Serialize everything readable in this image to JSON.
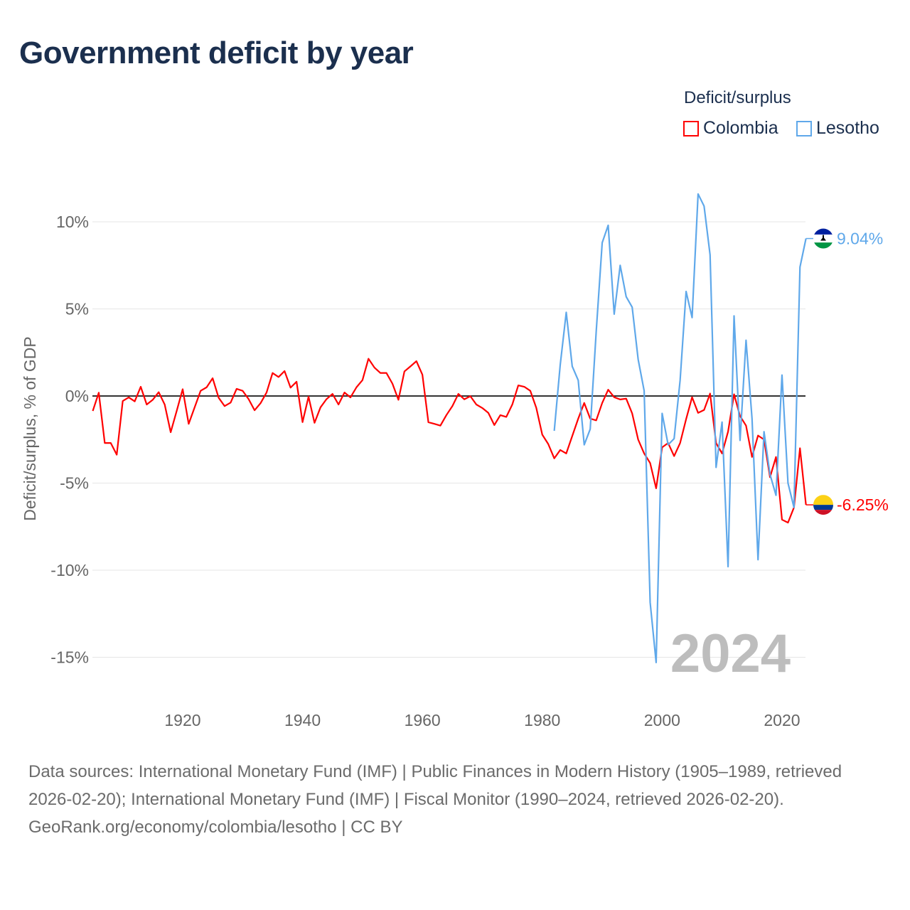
{
  "title": "Government deficit by year",
  "legend": {
    "title": "Deficit/surplus",
    "items": [
      {
        "label": "Colombia",
        "color": "#ff0000"
      },
      {
        "label": "Lesotho",
        "color": "#5fa8ea"
      }
    ]
  },
  "footer": {
    "sources": "Data sources: International Monetary Fund (IMF) | Public Finances in Modern History (1905–1989, retrieved 2026-02-20); International Monetary Fund (IMF) | Fiscal Monitor (1990–2024, retrieved 2026-02-20).",
    "credit": "GeoRank.org/economy/colombia/lesotho | CC BY"
  },
  "chart_data": {
    "type": "line",
    "title": "Government deficit by year",
    "ylabel": "Deficit/surplus, % of GDP",
    "xlabel": "",
    "xlim": [
      1905,
      2024
    ],
    "ylim": [
      -17,
      12
    ],
    "x_ticks": [
      1920,
      1940,
      1960,
      1980,
      2000,
      2020
    ],
    "y_ticks": [
      10,
      5,
      0,
      -5,
      -10,
      -15
    ],
    "y_tick_labels": [
      "10%",
      "5%",
      "0%",
      "-5%",
      "-10%",
      "-15%"
    ],
    "grid": true,
    "legend_position": "top-right",
    "current_year_label": "2024",
    "series": [
      {
        "name": "Colombia",
        "color": "#ff0000",
        "end_label": "-6.25%",
        "start_year": 1905,
        "values": [
          -0.86,
          0.19,
          -2.7,
          -2.7,
          -3.37,
          -0.29,
          -0.08,
          -0.31,
          0.53,
          -0.49,
          -0.22,
          0.22,
          -0.49,
          -2.08,
          -0.86,
          0.39,
          -1.6,
          -0.65,
          0.3,
          0.5,
          1.02,
          -0.1,
          -0.58,
          -0.38,
          0.41,
          0.3,
          -0.18,
          -0.82,
          -0.41,
          0.2,
          1.32,
          1.09,
          1.43,
          0.48,
          0.82,
          -1.5,
          -0.04,
          -1.54,
          -0.65,
          -0.18,
          0.12,
          -0.49,
          0.2,
          -0.08,
          0.5,
          0.91,
          2.14,
          1.63,
          1.32,
          1.32,
          0.71,
          -0.22,
          1.41,
          1.7,
          2.0,
          1.22,
          -1.51,
          -1.6,
          -1.7,
          -1.1,
          -0.58,
          0.12,
          -0.19,
          -0.01,
          -0.49,
          -0.69,
          -0.97,
          -1.67,
          -1.1,
          -1.2,
          -0.49,
          0.61,
          0.53,
          0.3,
          -0.68,
          -2.22,
          -2.76,
          -3.58,
          -3.1,
          -3.3,
          -2.3,
          -1.3,
          -0.4,
          -1.3,
          -1.4,
          -0.4,
          0.36,
          -0.07,
          -0.2,
          -0.15,
          -1.0,
          -2.5,
          -3.3,
          -3.85,
          -5.3,
          -2.95,
          -2.7,
          -3.45,
          -2.7,
          -1.33,
          -0.07,
          -0.97,
          -0.8,
          0.14,
          -2.7,
          -3.3,
          -2.05,
          0.1,
          -1.15,
          -1.7,
          -3.5,
          -2.27,
          -2.5,
          -4.66,
          -3.5,
          -7.1,
          -7.27,
          -6.4,
          -3.0,
          -6.25
        ]
      },
      {
        "name": "Lesotho",
        "color": "#5fa8ea",
        "end_label": "9.04%",
        "start_year": 1982,
        "values": [
          -2.0,
          1.8,
          4.8,
          1.7,
          0.9,
          -2.8,
          -1.9,
          3.7,
          8.8,
          9.8,
          4.7,
          7.5,
          5.7,
          5.1,
          2.1,
          0.3,
          -11.85,
          -15.3,
          -1.0,
          -2.8,
          -2.45,
          0.9,
          6.0,
          4.5,
          11.6,
          10.9,
          8.1,
          -4.1,
          -1.5,
          -9.8,
          4.6,
          -2.55,
          3.2,
          -1.3,
          -9.4,
          -2.05,
          -4.5,
          -5.7,
          1.2,
          -5.0,
          -6.4,
          7.4,
          9.04
        ]
      }
    ]
  }
}
